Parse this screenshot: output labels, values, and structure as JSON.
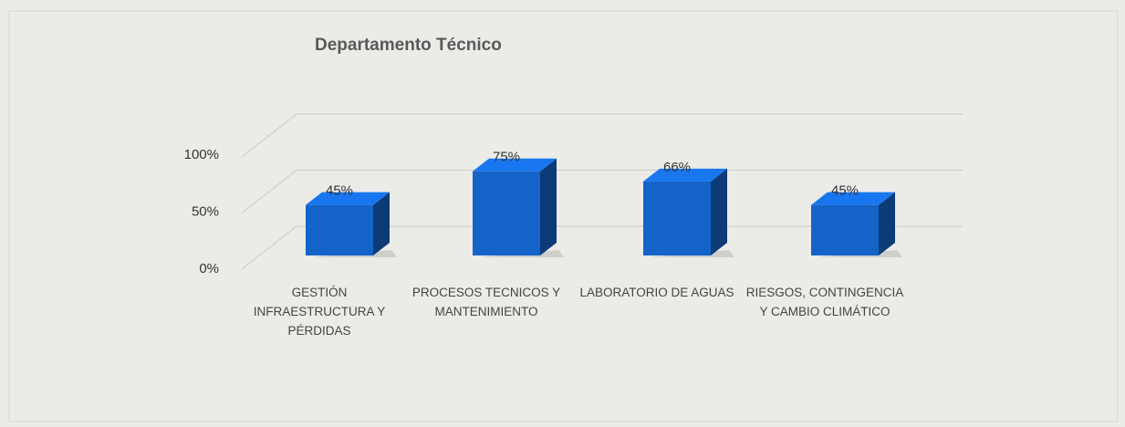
{
  "chart_data": {
    "type": "bar3d",
    "title": "Departamento Técnico",
    "categories": [
      "GESTIÓN INFRAESTRUCTURA Y PÉRDIDAS",
      "PROCESOS TECNICOS Y MANTENIMIENTO",
      "LABORATORIO DE AGUAS",
      "RIESGOS, CONTINGENCIA Y CAMBIO CLIMÁTICO"
    ],
    "values": [
      45,
      75,
      66,
      45
    ],
    "value_labels": [
      "45%",
      "75%",
      "66%",
      "45%"
    ],
    "color": "#1463c8",
    "ylim": [
      0,
      100
    ],
    "yticks": [
      {
        "value": 0,
        "label": "0%"
      },
      {
        "value": 50,
        "label": "50%"
      },
      {
        "value": 100,
        "label": "100%"
      }
    ],
    "grid": true
  }
}
